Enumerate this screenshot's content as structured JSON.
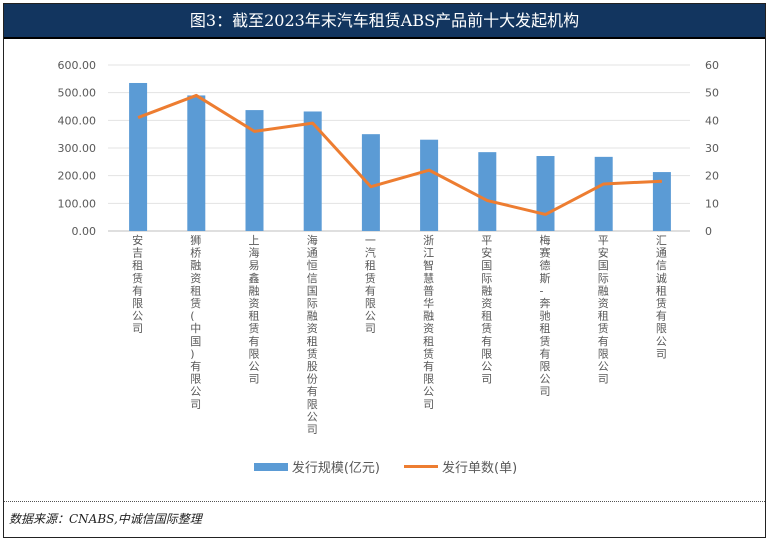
{
  "title": "图3：截至2023年末汽车租赁ABS产品前十大发起机构",
  "source": "数据来源：CNABS,中诚信国际整理",
  "chart_data": {
    "type": "bar+line",
    "categories": [
      "安吉租赁有限公司",
      "狮桥融资租赁(中国)有限公司",
      "上海易鑫融资租赁有限公司",
      "海通恒信国际融资租赁股份有限公司",
      "一汽租赁有限公司",
      "浙江智慧普华融资租赁有限公司",
      "平安国际融资租赁有限公司",
      "梅赛德斯-奔驰租赁有限公司",
      "平安国际融资租赁有限公司",
      "汇通信诚租赁有限公司"
    ],
    "series": [
      {
        "name": "发行规模(亿元)",
        "type": "bar",
        "axis": "left",
        "color": "#5b9bd5",
        "values": [
          535,
          490,
          437,
          432,
          350,
          330,
          285,
          271,
          268,
          213
        ]
      },
      {
        "name": "发行单数(单)",
        "type": "line",
        "axis": "right",
        "color": "#ed7d31",
        "values": [
          41,
          49,
          36,
          39,
          16,
          22,
          11,
          6,
          17,
          18
        ]
      }
    ],
    "left_axis": {
      "ylim": [
        0,
        600
      ],
      "ticks": [
        "0.00",
        "100.00",
        "200.00",
        "300.00",
        "400.00",
        "500.00",
        "600.00"
      ]
    },
    "right_axis": {
      "ylim": [
        0,
        60
      ],
      "ticks": [
        "0",
        "10",
        "20",
        "30",
        "40",
        "50",
        "60"
      ]
    },
    "grid": true,
    "legend": "bottom"
  }
}
